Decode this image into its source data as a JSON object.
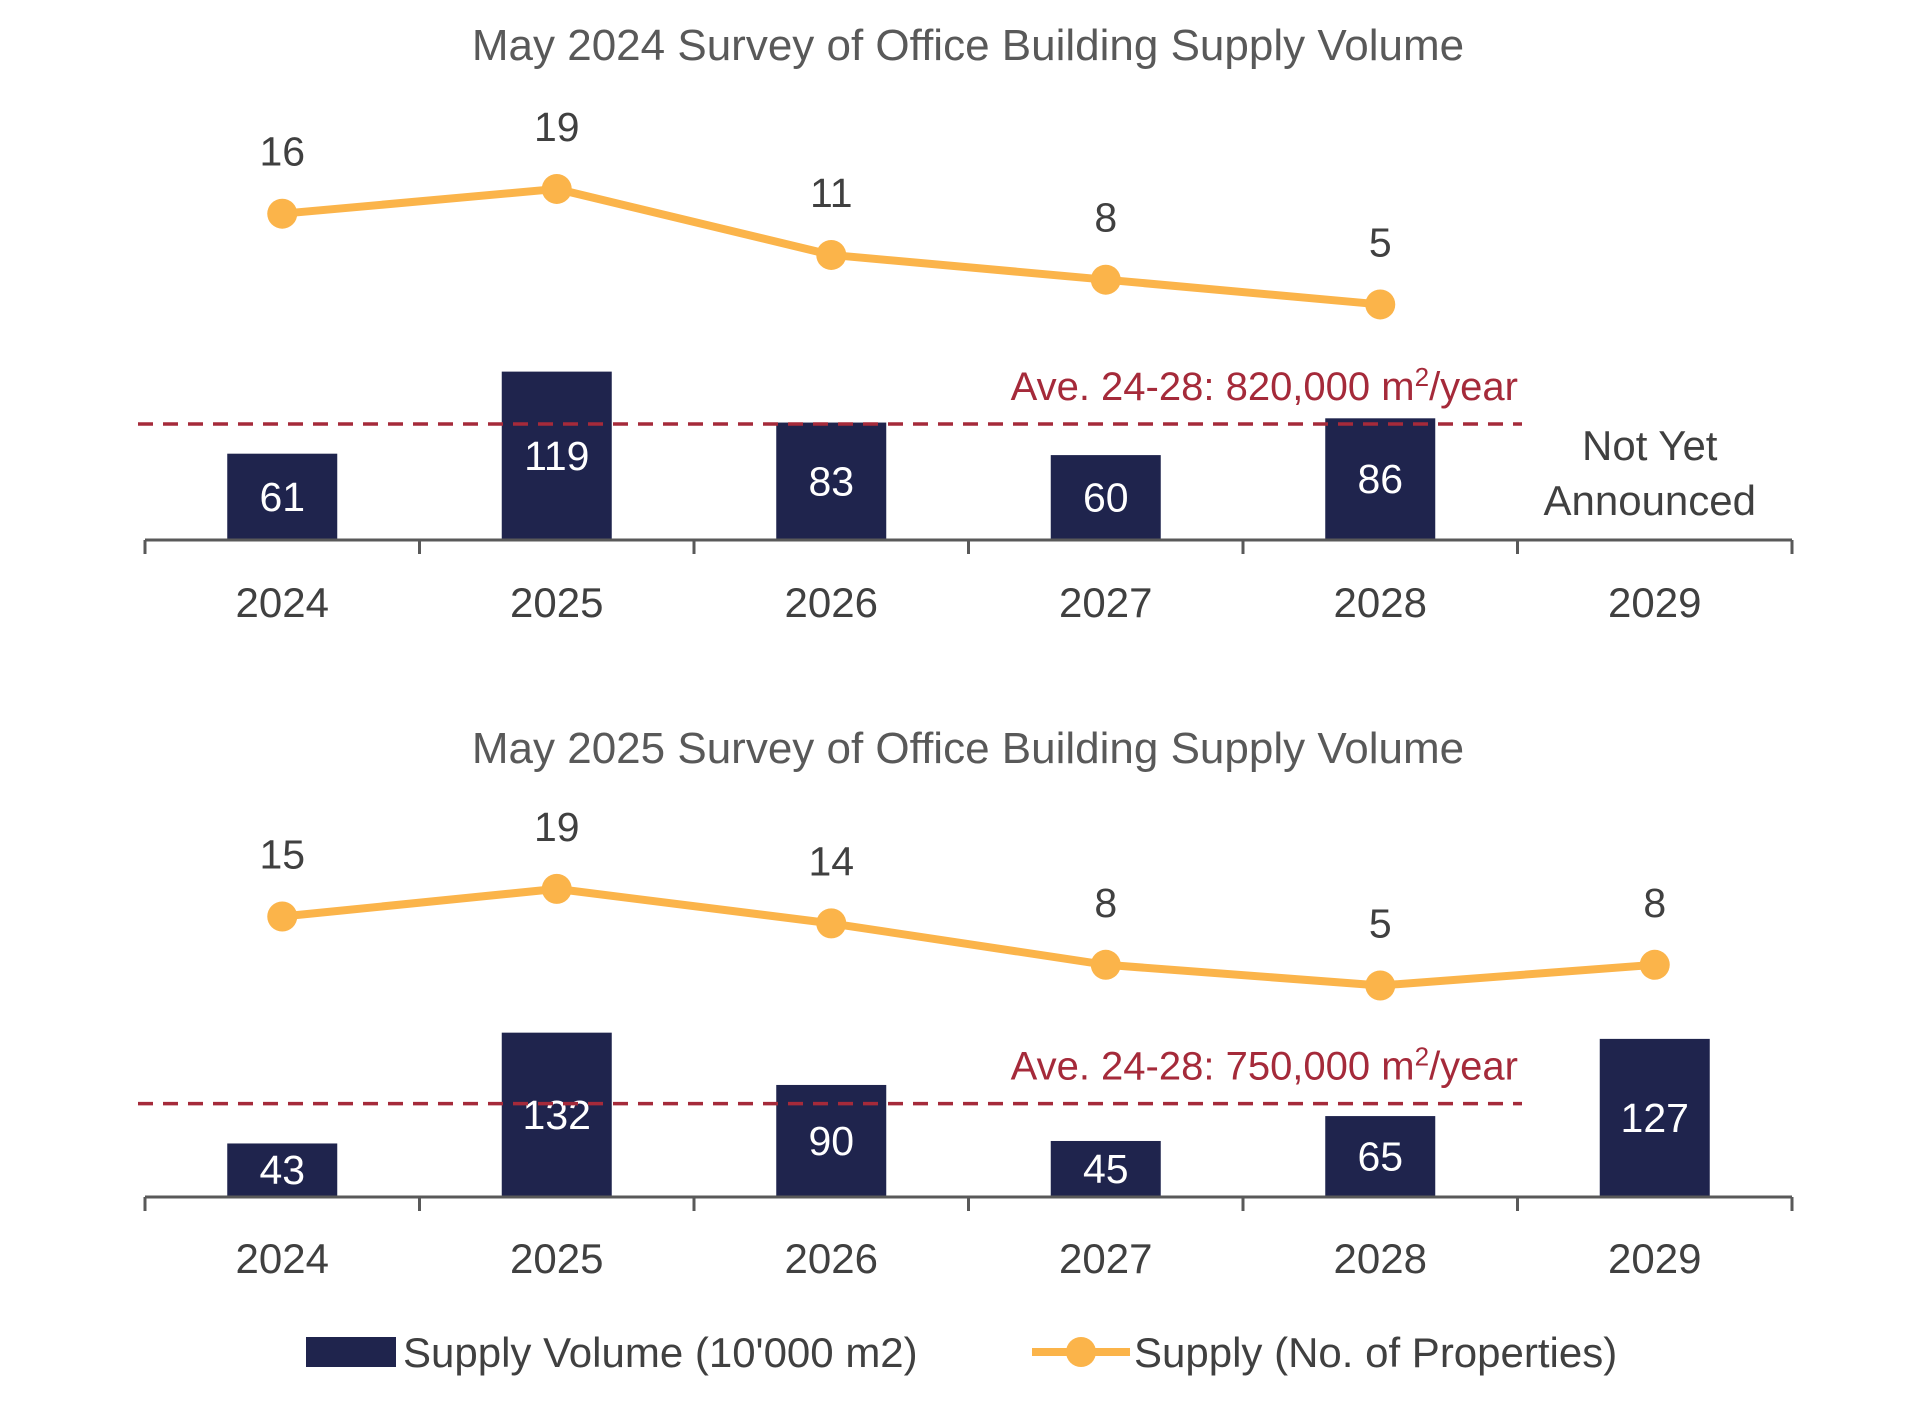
{
  "colors": {
    "bar": "#1F244D",
    "line": "#FBB44A",
    "avg": "#A52A3A",
    "axis": "#595959",
    "text": "#404040"
  },
  "chart_data": [
    {
      "type": "bar+line",
      "title": "May 2024 Survey of Office Building Supply Volume",
      "categories": [
        "2024",
        "2025",
        "2026",
        "2027",
        "2028",
        "2029"
      ],
      "series": [
        {
          "name": "Supply Volume (10'000 m2)",
          "type": "bar",
          "values": [
            61,
            119,
            83,
            60,
            86,
            null
          ]
        },
        {
          "name": "Supply (No. of Properties)",
          "type": "line",
          "values": [
            16,
            19,
            11,
            8,
            5,
            null
          ]
        }
      ],
      "average": {
        "label_prefix": "Ave. 24-28: 820,000 m",
        "label_sup": "2",
        "label_suffix": "/year",
        "value": 82
      },
      "annotation": {
        "line1": "Not Yet",
        "line2": "Announced",
        "category": "2029"
      }
    },
    {
      "type": "bar+line",
      "title": "May 2025 Survey of Office Building Supply Volume",
      "categories": [
        "2024",
        "2025",
        "2026",
        "2027",
        "2028",
        "2029"
      ],
      "series": [
        {
          "name": "Supply Volume (10'000 m2)",
          "type": "bar",
          "values": [
            43,
            132,
            90,
            45,
            65,
            127
          ]
        },
        {
          "name": "Supply (No. of Properties)",
          "type": "line",
          "values": [
            15,
            19,
            14,
            8,
            5,
            8
          ]
        }
      ],
      "average": {
        "label_prefix": "Ave. 24-28: 750,000 m",
        "label_sup": "2",
        "label_suffix": "/year",
        "value": 75
      }
    }
  ],
  "legend": {
    "bar_label": "Supply Volume (10'000 m2)",
    "line_label": "Supply (No. of Properties)"
  }
}
